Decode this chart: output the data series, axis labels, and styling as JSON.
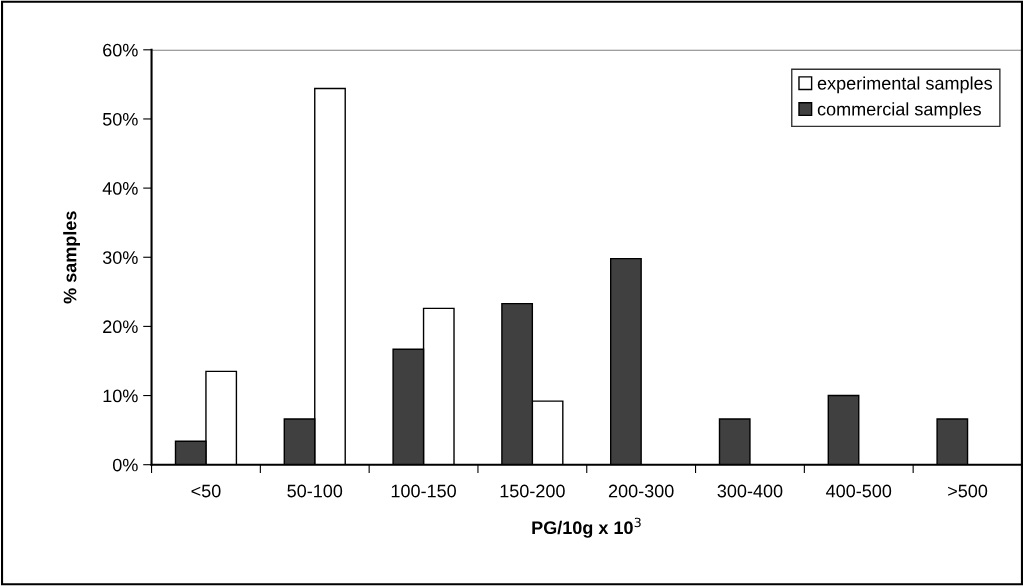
{
  "chart_data": {
    "type": "bar",
    "xlabel": "PG/10g x 10$^{3}$",
    "ylabel": "% samples",
    "categories": [
      "<50",
      "50-100",
      "100-150",
      "150-200",
      "200-300",
      "300-400",
      "400-500",
      ">500"
    ],
    "series": [
      {
        "name": "experimental samples",
        "color": "#ffffff",
        "values": [
          13.5,
          54.4,
          22.6,
          9.2,
          null,
          null,
          null,
          null
        ]
      },
      {
        "name": "commercial samples",
        "color": "#404040",
        "values": [
          3.4,
          6.6,
          16.7,
          23.3,
          29.8,
          6.6,
          10.0,
          6.6
        ]
      }
    ],
    "ylim": [
      0,
      60
    ],
    "yticks": [
      {
        "value": 0,
        "label": "0%"
      },
      {
        "value": 10,
        "label": "10%"
      },
      {
        "value": 20,
        "label": "20%"
      },
      {
        "value": 30,
        "label": "30%"
      },
      {
        "value": 40,
        "label": "40%"
      },
      {
        "value": 50,
        "label": "50%"
      },
      {
        "value": 60,
        "label": "60%"
      }
    ],
    "grid": false,
    "legend": "top right"
  }
}
